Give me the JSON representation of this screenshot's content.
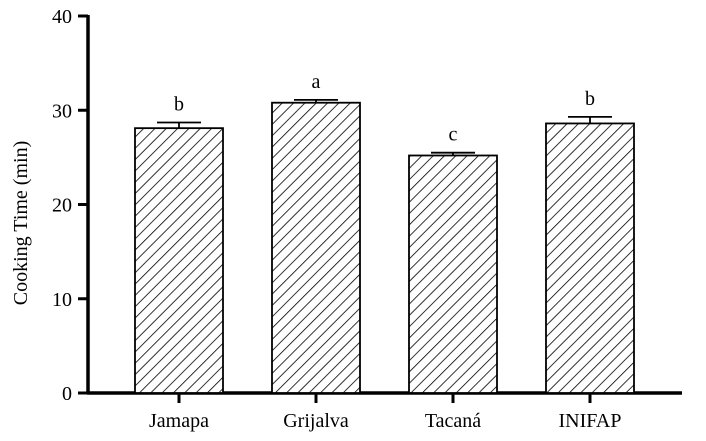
{
  "chart_data": {
    "type": "bar",
    "title": "",
    "xlabel": "",
    "ylabel": "Cooking Time (min)",
    "ylim": [
      0,
      40
    ],
    "yticks": [
      0,
      10,
      20,
      30,
      40
    ],
    "grid": false,
    "bar_fill": "hatched",
    "bar_color": "#000000",
    "categories": [
      "Jamapa",
      "Grijalva",
      "Tacaná",
      "INIFAP"
    ],
    "values": [
      28.1,
      30.8,
      25.2,
      28.6
    ],
    "errors": [
      0.6,
      0.3,
      0.3,
      0.7
    ],
    "significance": [
      "b",
      "a",
      "c",
      "b"
    ]
  }
}
